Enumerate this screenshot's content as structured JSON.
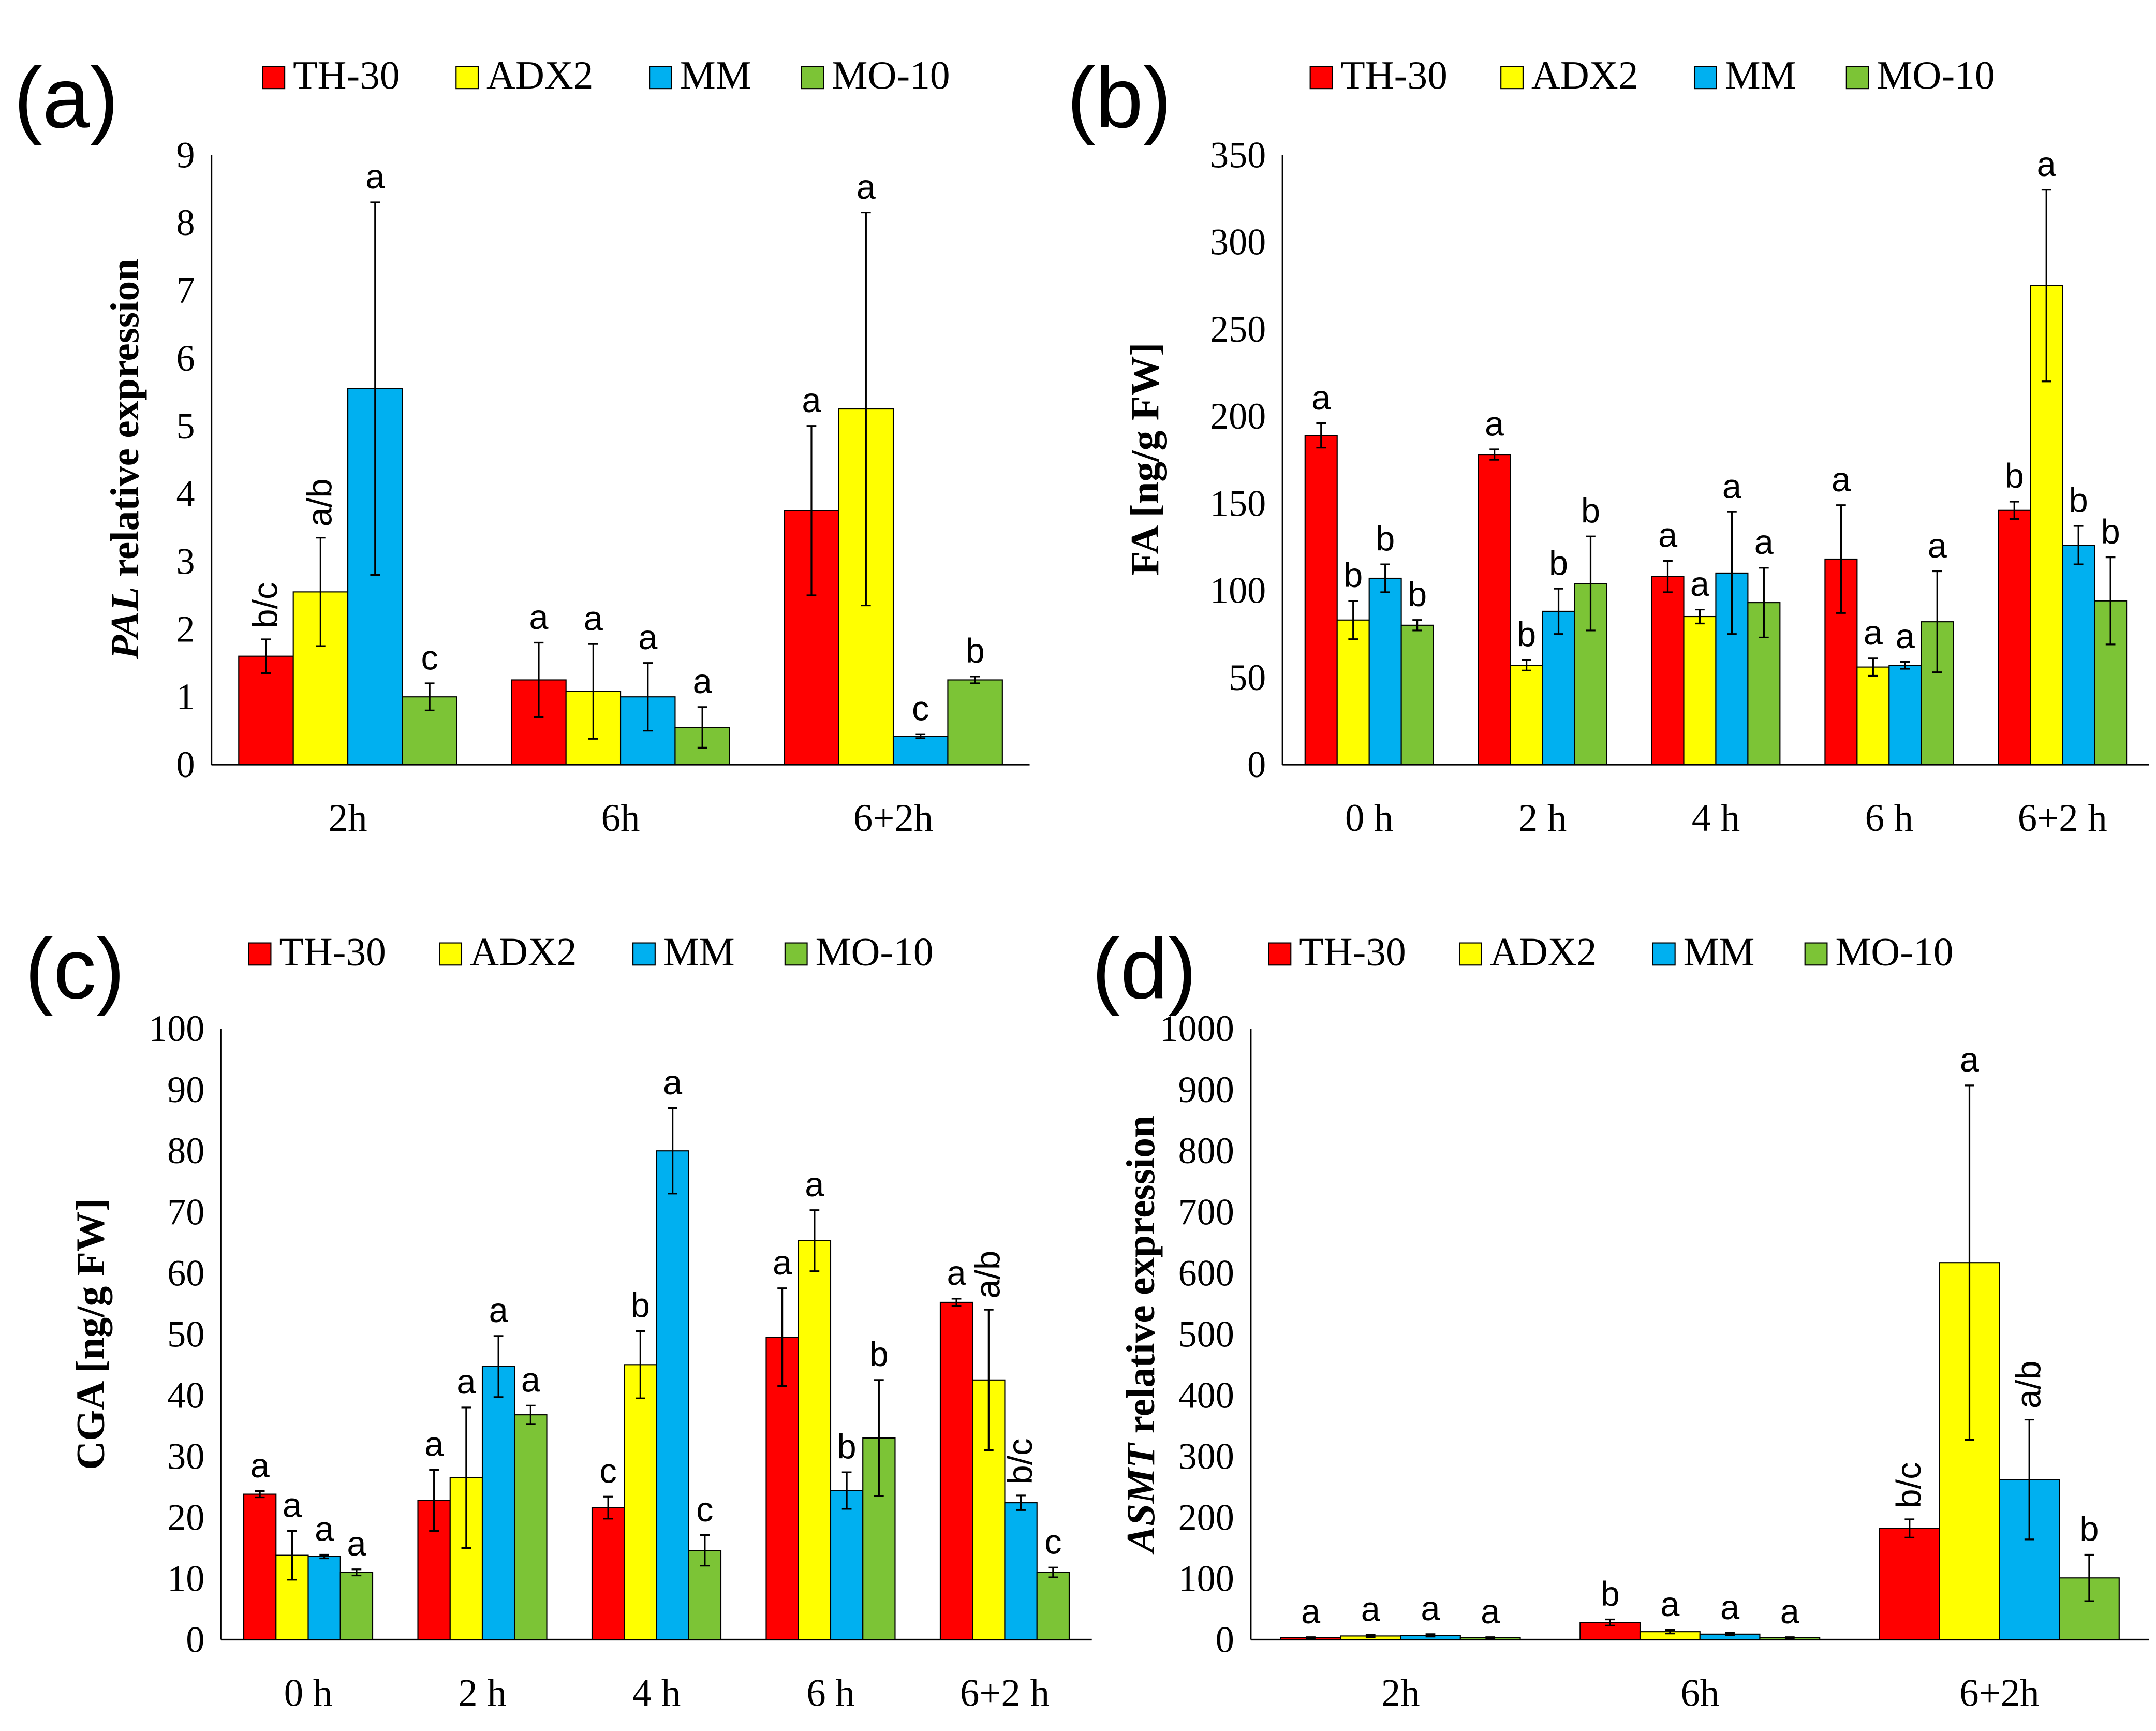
{
  "colors": {
    "TH-30": "#FF0000",
    "ADX2": "#FFFF00",
    "MM": "#00B0F0",
    "MO-10": "#7CC436"
  },
  "chart_data": [
    {
      "type": "bar",
      "panel": "(a)",
      "legend": [
        "TH-30",
        "ADX2",
        "MM",
        "MO-10"
      ],
      "legend_position": "top",
      "ylabel_italic": "PAL",
      "ylabel_rest": " relative expression",
      "ylim": [
        0,
        9
      ],
      "yticks": [
        0,
        1,
        2,
        3,
        4,
        5,
        6,
        7,
        8,
        9
      ],
      "categories": [
        "2h",
        "6h",
        "6+2h"
      ],
      "series": [
        {
          "name": "TH-30",
          "values": [
            1.6,
            1.25,
            3.75
          ],
          "errors": [
            0.25,
            0.55,
            1.25
          ],
          "letters": [
            "b/c",
            "a",
            "a"
          ]
        },
        {
          "name": "ADX2",
          "values": [
            2.55,
            1.08,
            5.25
          ],
          "errors": [
            0.8,
            0.7,
            2.9
          ],
          "letters": [
            "a/b",
            "a",
            "a"
          ]
        },
        {
          "name": "MM",
          "values": [
            5.55,
            1.0,
            0.42
          ],
          "errors": [
            2.75,
            0.5,
            0.03
          ],
          "letters": [
            "a",
            "a",
            "c"
          ]
        },
        {
          "name": "MO-10",
          "values": [
            1.0,
            0.55,
            1.25
          ],
          "errors": [
            0.2,
            0.3,
            0.05
          ],
          "letters": [
            "c",
            "a",
            "b"
          ]
        }
      ]
    },
    {
      "type": "bar",
      "panel": "(b)",
      "legend": [
        "TH-30",
        "ADX2",
        "MM",
        "MO-10"
      ],
      "legend_position": "top",
      "ylabel_italic": "",
      "ylabel_rest": "FA [ng/g FW]",
      "ylim": [
        0,
        350
      ],
      "yticks": [
        0,
        50,
        100,
        150,
        200,
        250,
        300,
        350
      ],
      "categories": [
        "0 h",
        "2 h",
        "4 h",
        "6 h",
        "6+2 h"
      ],
      "series": [
        {
          "name": "TH-30",
          "values": [
            189,
            178,
            108,
            118,
            146
          ],
          "errors": [
            7,
            3,
            9,
            31,
            5
          ],
          "letters": [
            "a",
            "a",
            "a",
            "a",
            "b"
          ]
        },
        {
          "name": "ADX2",
          "values": [
            83,
            57,
            85,
            56,
            275
          ],
          "errors": [
            11,
            3,
            4,
            5,
            55
          ],
          "letters": [
            "b",
            "b",
            "a",
            "a",
            "a"
          ]
        },
        {
          "name": "MM",
          "values": [
            107,
            88,
            110,
            57,
            126
          ],
          "errors": [
            8,
            13,
            35,
            2,
            11
          ],
          "letters": [
            "b",
            "b",
            "a",
            "a",
            "b"
          ]
        },
        {
          "name": "MO-10",
          "values": [
            80,
            104,
            93,
            82,
            94
          ],
          "errors": [
            3,
            27,
            20,
            29,
            25
          ],
          "letters": [
            "b",
            "b",
            "a",
            "a",
            "b"
          ]
        }
      ]
    },
    {
      "type": "bar",
      "panel": "(c)",
      "legend": [
        "TH-30",
        "ADX2",
        "MM",
        "MO-10"
      ],
      "legend_position": "top",
      "ylabel_italic": "",
      "ylabel_rest": "CGA [ng/g FW]",
      "ylim": [
        0,
        100
      ],
      "yticks": [
        0,
        10,
        20,
        30,
        40,
        50,
        60,
        70,
        80,
        90,
        100
      ],
      "categories": [
        "0 h",
        "2 h",
        "4 h",
        "6 h",
        "6+2 h"
      ],
      "series": [
        {
          "name": "TH-30",
          "values": [
            23.8,
            22.8,
            21.6,
            49.5,
            55.2
          ],
          "errors": [
            0.5,
            5,
            1.8,
            8,
            0.6
          ],
          "letters": [
            "a",
            "a",
            "c",
            "a",
            "a"
          ]
        },
        {
          "name": "ADX2",
          "values": [
            13.8,
            26.5,
            45,
            65.3,
            42.5
          ],
          "errors": [
            4,
            11.5,
            5.5,
            5,
            11.5
          ],
          "letters": [
            "a",
            "a",
            "b",
            "a",
            "a/b"
          ]
        },
        {
          "name": "MM",
          "values": [
            13.6,
            44.7,
            80,
            24.4,
            22.4
          ],
          "errors": [
            0.3,
            5,
            7,
            3,
            1.2
          ],
          "letters": [
            "a",
            "a",
            "a",
            "b",
            "b/c"
          ]
        },
        {
          "name": "MO-10",
          "values": [
            11,
            36.8,
            14.6,
            33,
            11
          ],
          "errors": [
            0.5,
            1.5,
            2.5,
            9.5,
            0.8
          ],
          "letters": [
            "a",
            "a",
            "c",
            "b",
            "c"
          ]
        }
      ]
    },
    {
      "type": "bar",
      "panel": "(d)",
      "legend": [
        "TH-30",
        "ADX2",
        "MM",
        "MO-10"
      ],
      "legend_position": "top",
      "ylabel_italic": "ASMT",
      "ylabel_rest": " relative expression",
      "ylim": [
        0,
        1000
      ],
      "yticks": [
        0,
        100,
        200,
        300,
        400,
        500,
        600,
        700,
        800,
        900,
        1000
      ],
      "categories": [
        "2h",
        "6h",
        "6+2h"
      ],
      "series": [
        {
          "name": "TH-30",
          "values": [
            3,
            28,
            182
          ],
          "errors": [
            1,
            5,
            15
          ],
          "letters": [
            "a",
            "b",
            "b/c"
          ]
        },
        {
          "name": "ADX2",
          "values": [
            6,
            13,
            617
          ],
          "errors": [
            2,
            3,
            290
          ],
          "letters": [
            "a",
            "a",
            "a"
          ]
        },
        {
          "name": "MM",
          "values": [
            7,
            9,
            262
          ],
          "errors": [
            2,
            2,
            98
          ],
          "letters": [
            "a",
            "a",
            "a/b"
          ]
        },
        {
          "name": "MO-10",
          "values": [
            3,
            3,
            101
          ],
          "errors": [
            1,
            1,
            38
          ],
          "letters": [
            "a",
            "a",
            "b"
          ]
        }
      ]
    }
  ]
}
